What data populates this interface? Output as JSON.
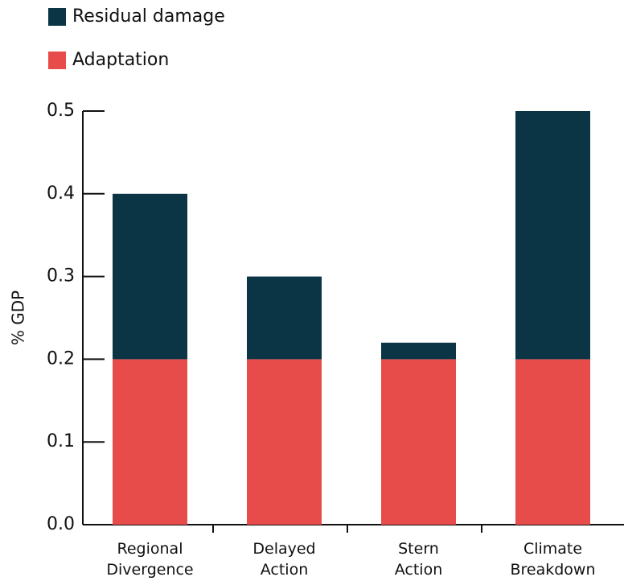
{
  "chart_data": {
    "type": "stacked_bar",
    "y_label": "% GDP",
    "categories": [
      "Regional Divergence",
      "Delayed Action",
      "Stern Action",
      "Climate Breakdown"
    ],
    "series": [
      {
        "name": "Adaptation",
        "color": "#e84c4a",
        "values": [
          0.2,
          0.2,
          0.2,
          0.2
        ]
      },
      {
        "name": "Residual damage",
        "color": "#0b3545",
        "values": [
          0.2,
          0.1,
          0.02,
          0.3
        ]
      }
    ],
    "ylim": [
      0,
      0.5
    ],
    "yticks": [
      {
        "value": 0,
        "label": "0.0"
      },
      0.1,
      0.2,
      0.3,
      0.4,
      0.5
    ]
  }
}
